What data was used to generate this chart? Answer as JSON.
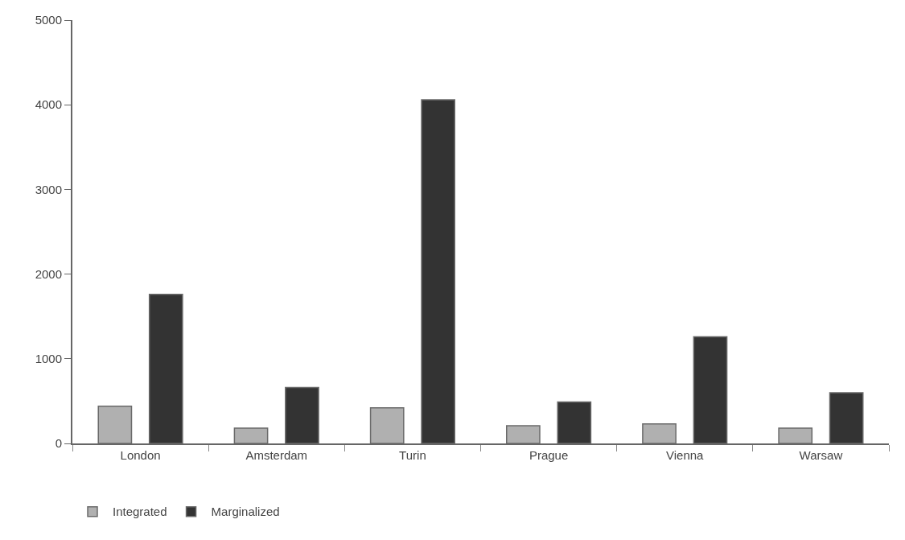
{
  "chart_data": {
    "type": "bar",
    "categories": [
      "London",
      "Amsterdam",
      "Turin",
      "Prague",
      "Vienna",
      "Warsaw"
    ],
    "series": [
      {
        "name": "Integrated",
        "color": "#b0b0b0",
        "values": [
          440,
          180,
          420,
          210,
          230,
          180
        ]
      },
      {
        "name": "Marginalized",
        "color": "#333333",
        "values": [
          1760,
          660,
          4060,
          490,
          1260,
          600
        ]
      }
    ],
    "ylim": [
      0,
      5000
    ],
    "yticks": [
      0,
      1000,
      2000,
      3000,
      4000,
      5000
    ],
    "grid": false,
    "legend": "bottom left"
  }
}
